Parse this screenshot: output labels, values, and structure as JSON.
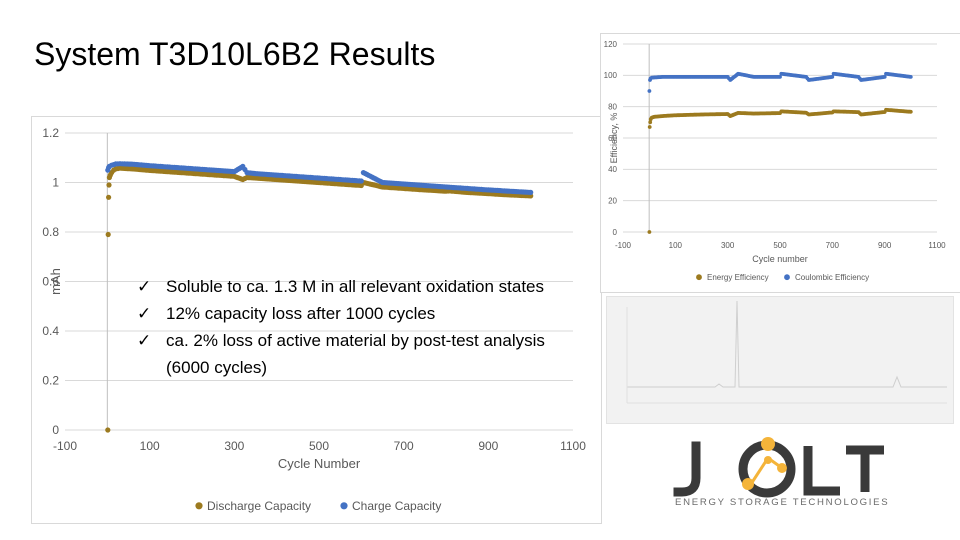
{
  "slide": {
    "title": "System T3D10L6B2 Results",
    "bullets": [
      "Soluble to ca. 1.3 M in all relevant oxidation states",
      "12% capacity loss after 1000 cycles",
      "ca. 2% loss of active material by post-test analysis (6000 cycles)"
    ],
    "bullet_icon": "check-icon"
  },
  "logo": {
    "letters": [
      "J",
      "O",
      "L",
      "T"
    ],
    "tagline": "ENERGY STORAGE TECHNOLOGIES",
    "colors": {
      "dark": "#3a3a3a",
      "accent": "#f4b43a"
    }
  },
  "chart_data": [
    {
      "type": "scatter",
      "title": "",
      "xlabel": "Cycle Number",
      "ylabel": "mAh",
      "xlim": [
        -100,
        1100
      ],
      "ylim": [
        0,
        1.2
      ],
      "x_ticks": [
        "-100",
        "100",
        "300",
        "500",
        "700",
        "900",
        "1100"
      ],
      "y_ticks": [
        "0",
        "0.2",
        "0.4",
        "0.6",
        "0.8",
        "1",
        "1.2"
      ],
      "grid": "horizontal",
      "legend_position": "bottom",
      "series": [
        {
          "name": "Discharge Capacity",
          "color": "#9c7a1f",
          "points": [
            [
              1,
              0
            ],
            [
              2,
              0.79
            ],
            [
              3,
              0.94
            ],
            [
              4,
              0.99
            ],
            [
              5,
              1.02
            ],
            [
              7,
              1.03
            ],
            [
              10,
              1.04
            ],
            [
              15,
              1.05
            ],
            [
              20,
              1.055
            ],
            [
              30,
              1.058
            ],
            [
              40,
              1.057
            ],
            [
              60,
              1.055
            ],
            [
              80,
              1.052
            ],
            [
              100,
              1.049
            ],
            [
              150,
              1.043
            ],
            [
              200,
              1.037
            ],
            [
              250,
              1.031
            ],
            [
              300,
              1.025
            ],
            [
              320,
              1.012
            ],
            [
              330,
              1.02
            ],
            [
              350,
              1.018
            ],
            [
              400,
              1.012
            ],
            [
              450,
              1.006
            ],
            [
              500,
              1.0
            ],
            [
              550,
              0.994
            ],
            [
              600,
              0.988
            ],
            [
              605,
              1.0
            ],
            [
              650,
              0.982
            ],
            [
              700,
              0.976
            ],
            [
              750,
              0.97
            ],
            [
              800,
              0.965
            ],
            [
              810,
              0.966
            ],
            [
              850,
              0.96
            ],
            [
              900,
              0.955
            ],
            [
              950,
              0.95
            ],
            [
              1000,
              0.946
            ]
          ]
        },
        {
          "name": "Charge Capacity",
          "color": "#4472c4",
          "points": [
            [
              1,
              1.05
            ],
            [
              3,
              1.06
            ],
            [
              5,
              1.065
            ],
            [
              10,
              1.07
            ],
            [
              20,
              1.075
            ],
            [
              30,
              1.076
            ],
            [
              40,
              1.075
            ],
            [
              60,
              1.074
            ],
            [
              80,
              1.071
            ],
            [
              100,
              1.068
            ],
            [
              150,
              1.062
            ],
            [
              200,
              1.056
            ],
            [
              250,
              1.05
            ],
            [
              300,
              1.044
            ],
            [
              320,
              1.065
            ],
            [
              330,
              1.04
            ],
            [
              350,
              1.036
            ],
            [
              400,
              1.03
            ],
            [
              450,
              1.024
            ],
            [
              500,
              1.018
            ],
            [
              550,
              1.012
            ],
            [
              600,
              1.006
            ],
            [
              605,
              1.04
            ],
            [
              650,
              1.0
            ],
            [
              700,
              0.994
            ],
            [
              750,
              0.988
            ],
            [
              800,
              0.982
            ],
            [
              850,
              0.976
            ],
            [
              900,
              0.97
            ],
            [
              950,
              0.965
            ],
            [
              1000,
              0.96
            ]
          ]
        }
      ]
    },
    {
      "type": "scatter",
      "title": "",
      "xlabel": "Cycle number",
      "ylabel": "Efficiency, %",
      "xlim": [
        -100,
        1100
      ],
      "ylim": [
        0,
        120
      ],
      "x_ticks": [
        "-100",
        "100",
        "300",
        "500",
        "700",
        "900",
        "1100"
      ],
      "y_ticks": [
        "0",
        "20",
        "40",
        "60",
        "80",
        "100",
        "120"
      ],
      "grid": "horizontal",
      "legend_position": "bottom",
      "series": [
        {
          "name": "Energy Efficiency",
          "color": "#9c7a1f",
          "points": [
            [
              1,
              0
            ],
            [
              2,
              67
            ],
            [
              4,
              70
            ],
            [
              6,
              72
            ],
            [
              10,
              73
            ],
            [
              20,
              73.5
            ],
            [
              50,
              74
            ],
            [
              100,
              74.5
            ],
            [
              200,
              75
            ],
            [
              300,
              75.3
            ],
            [
              310,
              74
            ],
            [
              340,
              76
            ],
            [
              400,
              75.6
            ],
            [
              500,
              75.9
            ],
            [
              505,
              77
            ],
            [
              600,
              76.1
            ],
            [
              610,
              75
            ],
            [
              700,
              76.3
            ],
            [
              705,
              77
            ],
            [
              800,
              76.5
            ],
            [
              810,
              75
            ],
            [
              900,
              76.6
            ],
            [
              905,
              78
            ],
            [
              1000,
              76.7
            ]
          ]
        },
        {
          "name": "Coulombic Efficiency",
          "color": "#4472c4",
          "points": [
            [
              1,
              90
            ],
            [
              3,
              97
            ],
            [
              5,
              98
            ],
            [
              10,
              98.5
            ],
            [
              50,
              99
            ],
            [
              100,
              99
            ],
            [
              200,
              99
            ],
            [
              300,
              99
            ],
            [
              310,
              97
            ],
            [
              340,
              101
            ],
            [
              400,
              99
            ],
            [
              500,
              99
            ],
            [
              505,
              101
            ],
            [
              600,
              99
            ],
            [
              610,
              97
            ],
            [
              700,
              99
            ],
            [
              705,
              101
            ],
            [
              800,
              99
            ],
            [
              810,
              97
            ],
            [
              900,
              99
            ],
            [
              905,
              101
            ],
            [
              1000,
              99
            ]
          ]
        }
      ]
    }
  ]
}
